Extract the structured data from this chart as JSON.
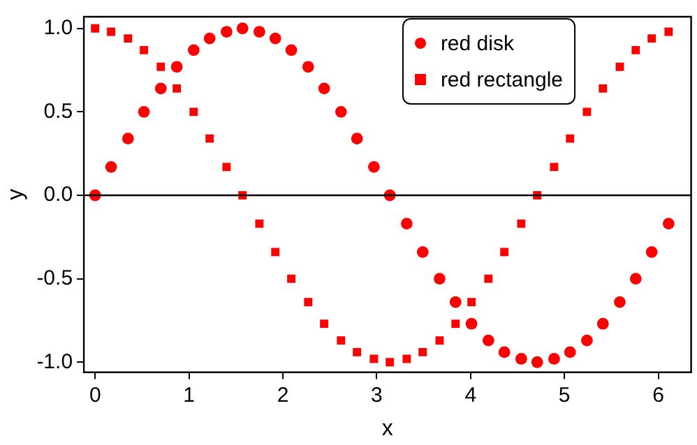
{
  "chart_data": {
    "type": "scatter",
    "xlabel": "x",
    "ylabel": "y",
    "x": [
      0,
      0.17,
      0.35,
      0.52,
      0.7,
      0.87,
      1.05,
      1.22,
      1.4,
      1.57,
      1.75,
      1.92,
      2.09,
      2.27,
      2.44,
      2.62,
      2.79,
      2.97,
      3.14,
      3.32,
      3.49,
      3.67,
      3.84,
      4.01,
      4.19,
      4.36,
      4.54,
      4.71,
      4.89,
      5.06,
      5.24,
      5.41,
      5.59,
      5.76,
      5.93,
      6.11
    ],
    "series": [
      {
        "name": "red disk",
        "color": "#ff0000",
        "marker": "circle",
        "values": [
          0,
          0.17,
          0.34,
          0.5,
          0.64,
          0.77,
          0.87,
          0.94,
          0.98,
          1,
          0.98,
          0.94,
          0.87,
          0.77,
          0.64,
          0.5,
          0.34,
          0.17,
          0,
          -0.17,
          -0.34,
          -0.5,
          -0.64,
          -0.77,
          -0.87,
          -0.94,
          -0.98,
          -1,
          -0.98,
          -0.94,
          -0.87,
          -0.77,
          -0.64,
          -0.5,
          -0.34,
          -0.17
        ]
      },
      {
        "name": "red rectangle",
        "color": "#ff0000",
        "marker": "square",
        "values": [
          1,
          0.98,
          0.94,
          0.87,
          0.77,
          0.64,
          0.5,
          0.34,
          0.17,
          0,
          -0.17,
          -0.34,
          -0.5,
          -0.64,
          -0.77,
          -0.87,
          -0.94,
          -0.98,
          -1,
          -0.98,
          -0.94,
          -0.87,
          -0.77,
          -0.64,
          -0.5,
          -0.34,
          -0.17,
          0,
          0.17,
          0.34,
          0.5,
          0.64,
          0.77,
          0.87,
          0.94,
          0.98
        ]
      }
    ],
    "xlim": [
      -0.12,
      6.35
    ],
    "xticks": [
      0,
      1,
      2,
      3,
      4,
      5,
      6
    ],
    "ylim": [
      -1.06,
      1.07
    ],
    "yticks": [
      {
        "value": -1,
        "label": "-1.0"
      },
      {
        "value": -0.5,
        "label": "-0.5"
      },
      {
        "value": 0,
        "label": "0.0"
      },
      {
        "value": 0.5,
        "label": "0.5"
      },
      {
        "value": 1,
        "label": "1.0"
      }
    ],
    "ref_lines": [
      {
        "axis": "y",
        "value": 0,
        "color": "#000000"
      }
    ],
    "grid": false,
    "legend": "top right"
  }
}
